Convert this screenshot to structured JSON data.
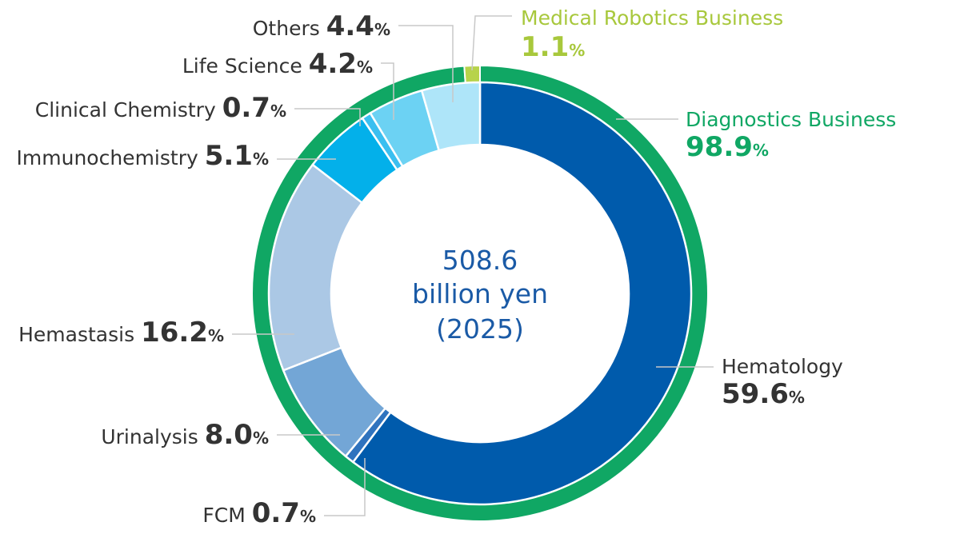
{
  "chart_data": {
    "type": "pie",
    "center_text": [
      "508.6",
      "billion yen",
      "(2025)"
    ],
    "percent_sign": "%",
    "outer_ring": [
      {
        "label": "Diagnostics Business",
        "value": 98.9,
        "display": "98.9",
        "color": "#10a764",
        "label_color": "#10a764"
      },
      {
        "label": "Medical Robotics Business",
        "value": 1.1,
        "display": "1.1",
        "color": "#b7d34a",
        "label_color": "#a8c83c"
      }
    ],
    "inner_ring": [
      {
        "label": "Hematology",
        "value": 59.6,
        "display": "59.6",
        "color": "#005bac"
      },
      {
        "label": "FCM",
        "value": 0.7,
        "display": "0.7",
        "color": "#2f73be"
      },
      {
        "label": "Urinalysis",
        "value": 8.0,
        "display": "8.0",
        "color": "#73a6d6"
      },
      {
        "label": "Hemastasis",
        "value": 16.2,
        "display": "16.2",
        "color": "#abc8e5"
      },
      {
        "label": "Immunochemistry",
        "value": 5.1,
        "display": "5.1",
        "color": "#03b0ea"
      },
      {
        "label": "Clinical Chemistry",
        "value": 0.7,
        "display": "0.7",
        "color": "#3bbff0"
      },
      {
        "label": "Life Science",
        "value": 4.2,
        "display": "4.2",
        "color": "#6cd2f3"
      },
      {
        "label": "Others",
        "value": 4.4,
        "display": "4.4",
        "color": "#aee5f9"
      }
    ]
  }
}
